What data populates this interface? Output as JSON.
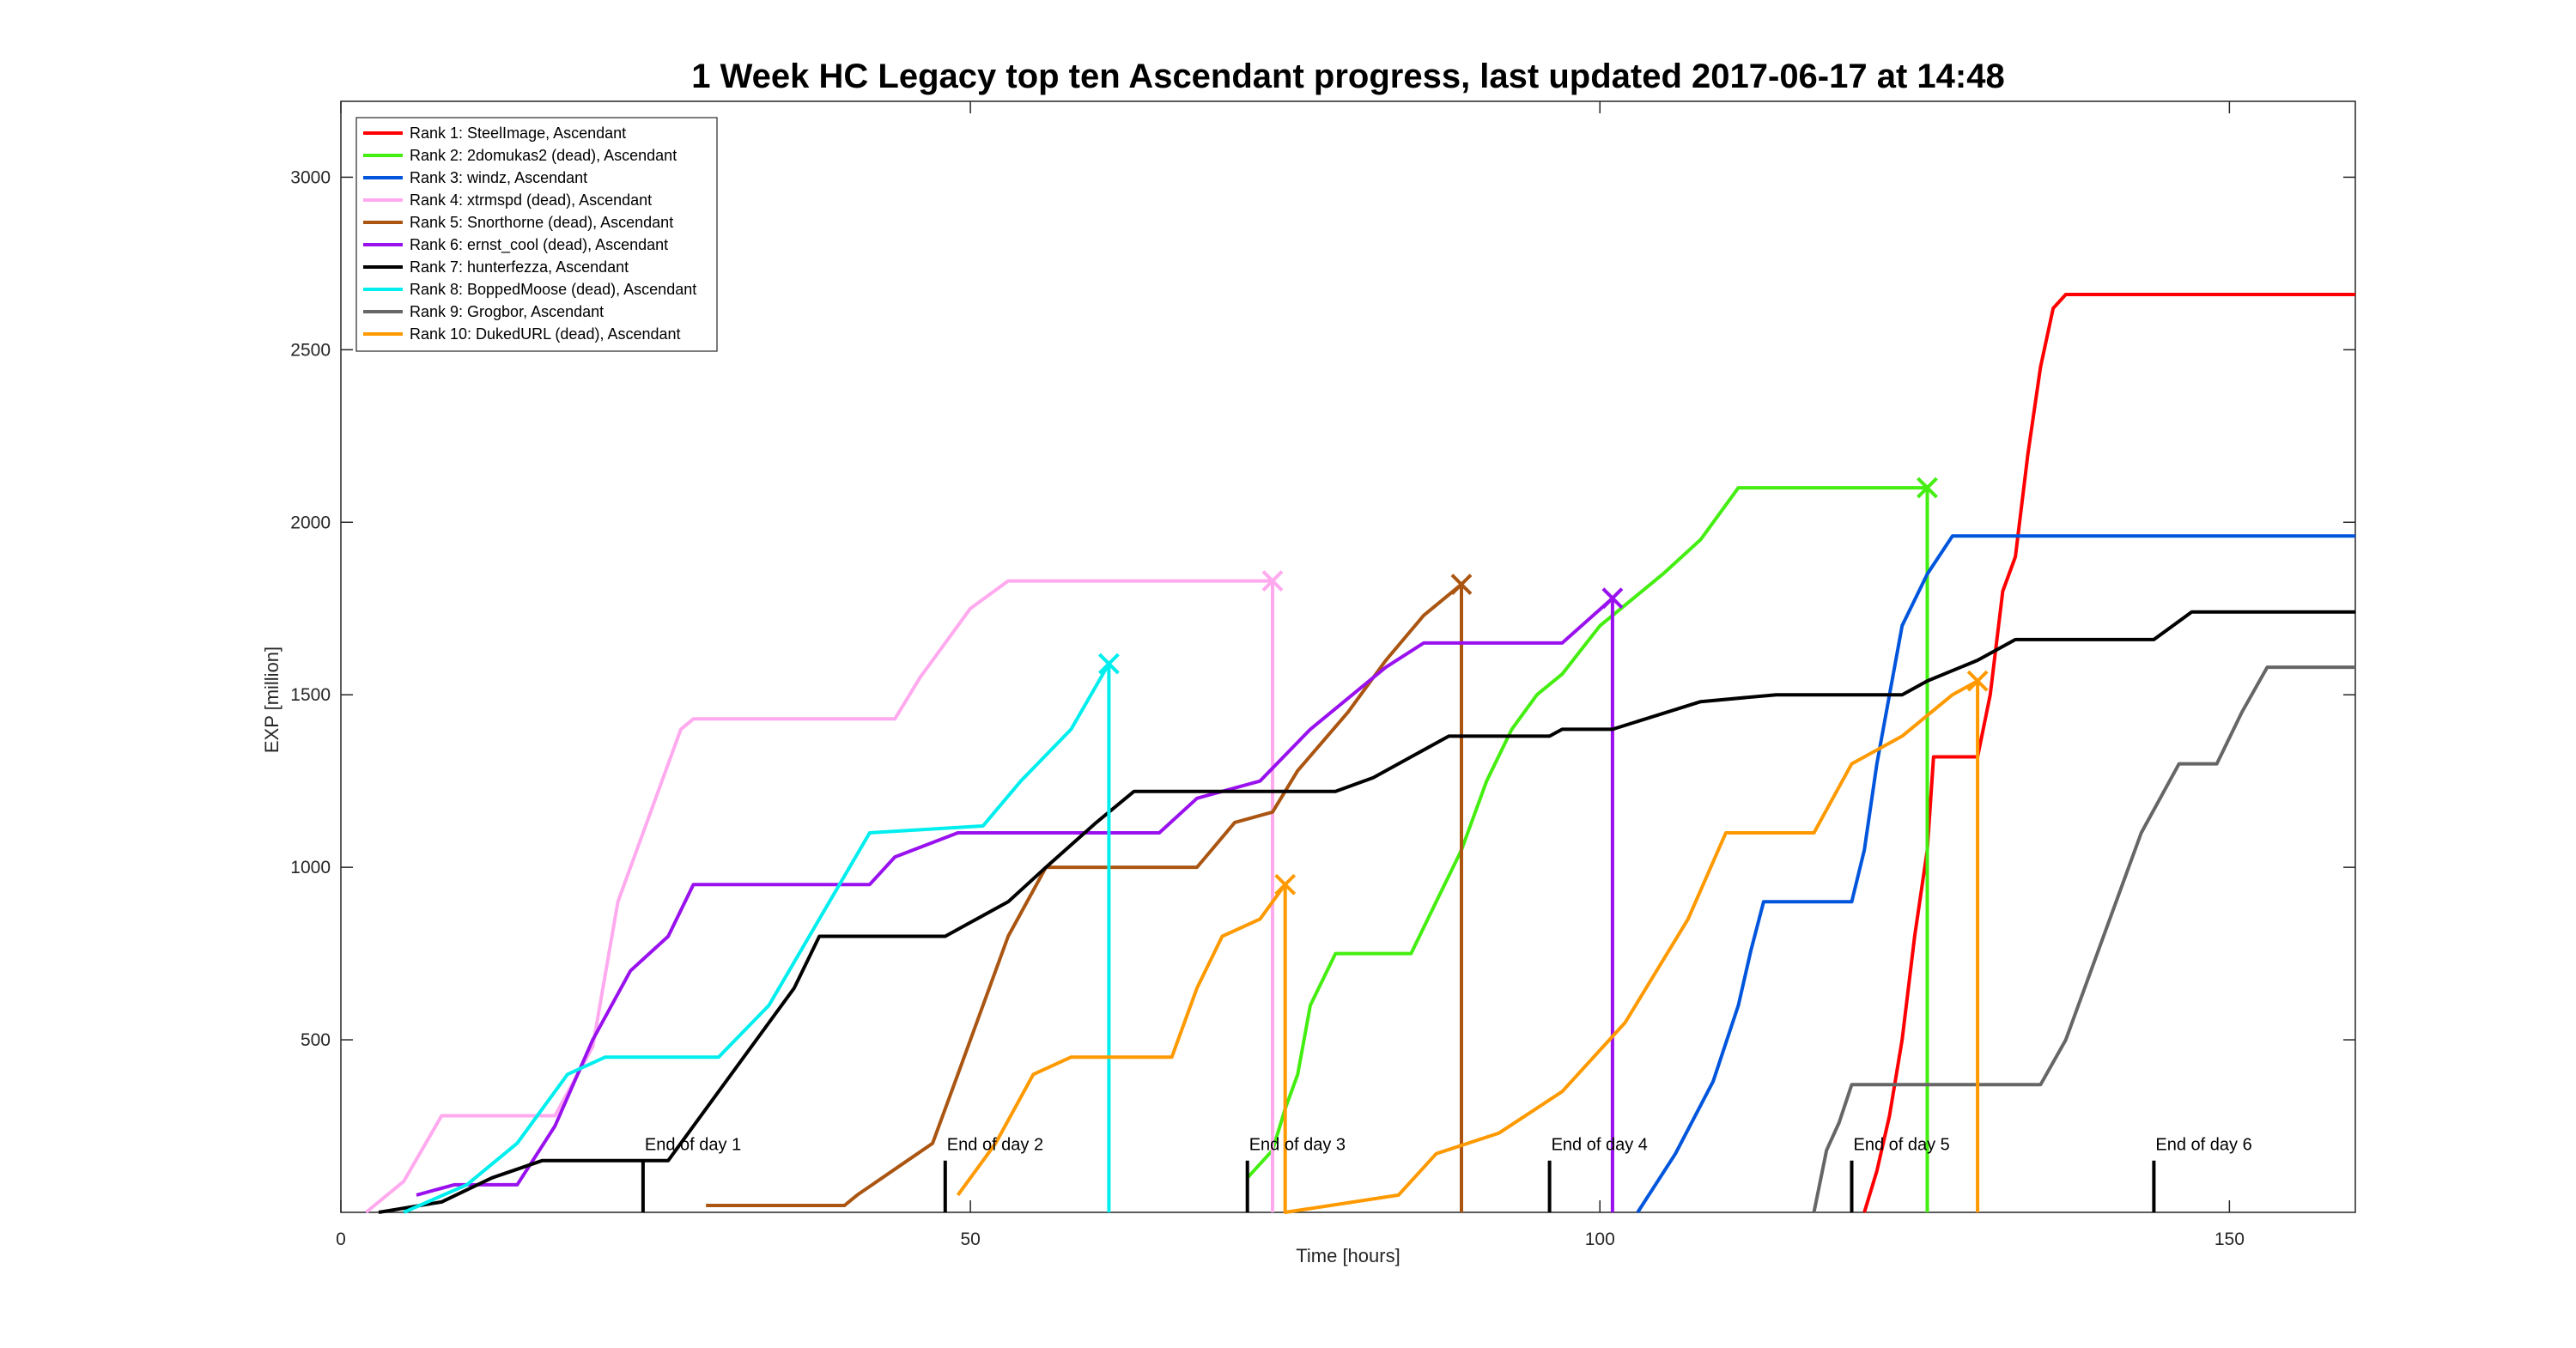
{
  "chart_data": {
    "type": "line",
    "title": "1 Week HC Legacy top ten Ascendant progress, last updated 2017-06-17 at 14:48",
    "xlabel": "Time [hours]",
    "ylabel": "EXP [million]",
    "xlim": [
      0,
      160
    ],
    "ylim": [
      0,
      3220
    ],
    "xticks": [
      0,
      50,
      100,
      150
    ],
    "yticks": [
      500,
      1000,
      1500,
      2000,
      2500,
      3000
    ],
    "grid": false,
    "legend_position": "top-left",
    "annotations": [
      {
        "x": 24,
        "height": 150,
        "label": "End of day 1"
      },
      {
        "x": 48,
        "height": 150,
        "label": "End of day 2"
      },
      {
        "x": 72,
        "height": 150,
        "label": "End of day 3"
      },
      {
        "x": 96,
        "height": 150,
        "label": "End of day 4"
      },
      {
        "x": 120,
        "height": 150,
        "label": "End of day 5"
      },
      {
        "x": 144,
        "height": 150,
        "label": "End of day 6"
      }
    ],
    "series": [
      {
        "name": "Rank 1: SteelImage, Ascendant",
        "color": "#ff0000",
        "dead": false,
        "points": [
          [
            121,
            0
          ],
          [
            122,
            120
          ],
          [
            123,
            280
          ],
          [
            124,
            500
          ],
          [
            125,
            800
          ],
          [
            126,
            1050
          ],
          [
            126.5,
            1320
          ],
          [
            130,
            1320
          ],
          [
            131,
            1500
          ],
          [
            132,
            1800
          ],
          [
            133,
            1900
          ],
          [
            134,
            2200
          ],
          [
            135,
            2450
          ],
          [
            136,
            2620
          ],
          [
            137,
            2660
          ],
          [
            160,
            2660
          ]
        ]
      },
      {
        "name": "Rank 2: 2domukas2 (dead), Ascendant",
        "color": "#44ee11",
        "dead": true,
        "points": [
          [
            72,
            100
          ],
          [
            74,
            180
          ],
          [
            75,
            300
          ],
          [
            76,
            400
          ],
          [
            77,
            600
          ],
          [
            79,
            750
          ],
          [
            85,
            750
          ],
          [
            87,
            900
          ],
          [
            89,
            1050
          ],
          [
            91,
            1250
          ],
          [
            93,
            1400
          ],
          [
            95,
            1500
          ],
          [
            97,
            1560
          ],
          [
            100,
            1700
          ],
          [
            105,
            1850
          ],
          [
            108,
            1950
          ],
          [
            111,
            2100
          ],
          [
            126,
            2100
          ],
          [
            126,
            0
          ]
        ]
      },
      {
        "name": "Rank 3: windz, Ascendant",
        "color": "#0055dd",
        "dead": false,
        "points": [
          [
            103,
            0
          ],
          [
            106,
            170
          ],
          [
            109,
            380
          ],
          [
            111,
            600
          ],
          [
            112,
            760
          ],
          [
            113,
            900
          ],
          [
            120,
            900
          ],
          [
            121,
            1050
          ],
          [
            122,
            1300
          ],
          [
            123,
            1500
          ],
          [
            124,
            1700
          ],
          [
            126,
            1850
          ],
          [
            128,
            1960
          ],
          [
            160,
            1960
          ]
        ]
      },
      {
        "name": "Rank 4: xtrmspd (dead), Ascendant",
        "color": "#ffaaee",
        "dead": true,
        "points": [
          [
            2,
            0
          ],
          [
            5,
            90
          ],
          [
            8,
            280
          ],
          [
            17,
            280
          ],
          [
            20,
            480
          ],
          [
            22,
            900
          ],
          [
            24,
            1100
          ],
          [
            27,
            1400
          ],
          [
            28,
            1430
          ],
          [
            44,
            1430
          ],
          [
            46,
            1550
          ],
          [
            48,
            1650
          ],
          [
            50,
            1750
          ],
          [
            53,
            1830
          ],
          [
            74,
            1830
          ],
          [
            74,
            0
          ]
        ]
      },
      {
        "name": "Rank 5: Snorthorne (dead), Ascendant",
        "color": "#aa5511",
        "dead": true,
        "points": [
          [
            29,
            20
          ],
          [
            40,
            20
          ],
          [
            41,
            50
          ],
          [
            45,
            150
          ],
          [
            47,
            200
          ],
          [
            49,
            400
          ],
          [
            51,
            600
          ],
          [
            53,
            800
          ],
          [
            56,
            1000
          ],
          [
            68,
            1000
          ],
          [
            71,
            1130
          ],
          [
            74,
            1160
          ],
          [
            76,
            1280
          ],
          [
            80,
            1450
          ],
          [
            83,
            1600
          ],
          [
            86,
            1730
          ],
          [
            89,
            1820
          ],
          [
            89,
            0
          ]
        ]
      },
      {
        "name": "Rank 6: ernst_cool (dead), Ascendant",
        "color": "#9911ee",
        "dead": true,
        "points": [
          [
            6,
            50
          ],
          [
            9,
            80
          ],
          [
            14,
            80
          ],
          [
            17,
            250
          ],
          [
            20,
            500
          ],
          [
            23,
            700
          ],
          [
            26,
            800
          ],
          [
            28,
            950
          ],
          [
            42,
            950
          ],
          [
            44,
            1030
          ],
          [
            49,
            1100
          ],
          [
            65,
            1100
          ],
          [
            68,
            1200
          ],
          [
            73,
            1250
          ],
          [
            77,
            1400
          ],
          [
            83,
            1580
          ],
          [
            86,
            1650
          ],
          [
            97,
            1650
          ],
          [
            101,
            1780
          ],
          [
            101,
            0
          ]
        ]
      },
      {
        "name": "Rank 7: hunterfezza, Ascendant",
        "color": "#000000",
        "dead": false,
        "points": [
          [
            3,
            0
          ],
          [
            8,
            30
          ],
          [
            12,
            100
          ],
          [
            16,
            150
          ],
          [
            26,
            150
          ],
          [
            29,
            300
          ],
          [
            33,
            500
          ],
          [
            36,
            650
          ],
          [
            38,
            800
          ],
          [
            48,
            800
          ],
          [
            50,
            840
          ],
          [
            53,
            900
          ],
          [
            56,
            1000
          ],
          [
            60,
            1130
          ],
          [
            63,
            1220
          ],
          [
            79,
            1220
          ],
          [
            82,
            1260
          ],
          [
            88,
            1380
          ],
          [
            96,
            1380
          ],
          [
            97,
            1400
          ],
          [
            101,
            1400
          ],
          [
            108,
            1480
          ],
          [
            114,
            1500
          ],
          [
            124,
            1500
          ],
          [
            126,
            1540
          ],
          [
            130,
            1600
          ],
          [
            133,
            1660
          ],
          [
            144,
            1660
          ],
          [
            147,
            1740
          ],
          [
            160,
            1740
          ]
        ]
      },
      {
        "name": "Rank 8: BoppedMoose (dead), Ascendant",
        "color": "#00eeee",
        "dead": true,
        "points": [
          [
            5,
            0
          ],
          [
            10,
            80
          ],
          [
            14,
            200
          ],
          [
            18,
            400
          ],
          [
            21,
            450
          ],
          [
            30,
            450
          ],
          [
            34,
            600
          ],
          [
            38,
            850
          ],
          [
            42,
            1100
          ],
          [
            51,
            1120
          ],
          [
            54,
            1250
          ],
          [
            58,
            1400
          ],
          [
            61,
            1590
          ],
          [
            61,
            0
          ]
        ]
      },
      {
        "name": "Rank 9: Grogbor, Ascendant",
        "color": "#666666",
        "dead": false,
        "points": [
          [
            117,
            0
          ],
          [
            118,
            180
          ],
          [
            119,
            260
          ],
          [
            120,
            370
          ],
          [
            135,
            370
          ],
          [
            137,
            500
          ],
          [
            139,
            700
          ],
          [
            141,
            900
          ],
          [
            143,
            1100
          ],
          [
            146,
            1300
          ],
          [
            149,
            1300
          ],
          [
            151,
            1450
          ],
          [
            153,
            1580
          ],
          [
            160,
            1580
          ]
        ]
      },
      {
        "name": "Rank 10: DukedURL (dead), Ascendant",
        "color": "#ff9900",
        "dead": true,
        "points": [
          [
            49,
            50
          ],
          [
            52,
            200
          ],
          [
            55,
            400
          ],
          [
            58,
            450
          ],
          [
            66,
            450
          ],
          [
            68,
            650
          ],
          [
            70,
            800
          ],
          [
            73,
            850
          ],
          [
            75,
            950
          ],
          [
            75,
            0
          ],
          [
            84,
            50
          ],
          [
            87,
            170
          ],
          [
            92,
            230
          ],
          [
            97,
            350
          ],
          [
            102,
            550
          ],
          [
            107,
            850
          ],
          [
            110,
            1100
          ],
          [
            117,
            1100
          ],
          [
            120,
            1300
          ],
          [
            124,
            1380
          ],
          [
            128,
            1500
          ],
          [
            130,
            1540
          ],
          [
            130,
            0
          ]
        ]
      }
    ]
  }
}
